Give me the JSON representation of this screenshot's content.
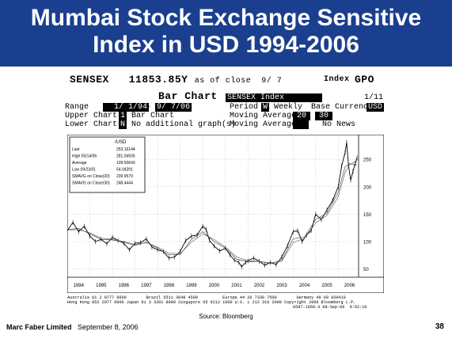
{
  "slide": {
    "title_line1": "Mumbai Stock Exchange Sensitive",
    "title_line2": "Index in USD 1994-2006",
    "source": "Source: Bloomberg",
    "footer_company": "Marc Faber Limited",
    "footer_date": "September 8, 2006",
    "page_number": "38"
  },
  "terminal": {
    "ticker": "SENSEX",
    "price": "11853.85Y",
    "as_of": "as of close  9/ 7",
    "index_label": "Index",
    "go_label": "GPO",
    "chart_title": "Bar Chart",
    "security_name": "SENSEX Index",
    "page_ind": "1/11",
    "range_label": "Range",
    "range_start": "1/ 1/94",
    "range_sep": "-",
    "range_end": "9/ 7/06",
    "period_label": "Period",
    "period_value": "W",
    "period_name": "Weekly",
    "base_currency_label": "Base Currency:",
    "base_currency_value": "USD",
    "upper_chart_label": "Upper Chart:",
    "upper_chart_value": "1",
    "upper_chart_name": "Bar Chart",
    "ma_label": "Moving Averages",
    "ma1": "20",
    "ma2": "30",
    "lower_chart_label": "Lower Chart:",
    "lower_chart_value": "N",
    "lower_chart_name": "No additional graph(s)",
    "ma_label2": "Moving Average",
    "no_news": "No News",
    "footer_line1": "Australia 61 2 9777 8600        Brazil 5511 3048 4500          Europe 44 20 7330 7500        Germany 49 69 920410",
    "footer_line2": "Hong Kong 852 2977 6000 Japan 81 3 3201 8900 Singapore 65 6212 1000 U.S. 1 212 318 2000 Copyright 2006 Bloomberg L.P.",
    "footer_line3": "G587-1058-3 08-Sep-06  9:52:10"
  },
  "legend": {
    "currency": "/USD",
    "rows": [
      {
        "label": "Last",
        "value": "253.16144"
      },
      {
        "label": "High  05/14/06",
        "value": "281.04935"
      },
      {
        "label": "Average",
        "value": "109.50643"
      },
      {
        "label": "Low  09/23/01",
        "value": "54.04291"
      },
      {
        "label": "SMAVG on Close(20)",
        "value": "239.9579"
      },
      {
        "label": "SMAVG on Close(30)",
        "value": "248.4444"
      }
    ]
  },
  "chart_data": {
    "type": "line",
    "title": "",
    "xlabel": "",
    "ylabel": "",
    "x_ticks": [
      "1994",
      "1995",
      "1996",
      "1997",
      "1998",
      "1999",
      "2000",
      "2001",
      "2002",
      "2003",
      "2004",
      "2005",
      "2006"
    ],
    "y_ticks": [
      50,
      100,
      150,
      200,
      250
    ],
    "ylim": [
      35,
      295
    ],
    "xlim": [
      1994.0,
      2006.9
    ],
    "grid": true,
    "series": [
      {
        "name": "",
        "role": "price",
        "x": [
          1994.0,
          1994.25,
          1994.5,
          1994.75,
          1995.0,
          1995.25,
          1995.5,
          1995.75,
          1996.0,
          1996.25,
          1996.5,
          1996.75,
          1997.0,
          1997.25,
          1997.5,
          1997.75,
          1998.0,
          1998.25,
          1998.5,
          1998.75,
          1999.0,
          1999.25,
          1999.5,
          1999.75,
          2000.0,
          2000.15,
          2000.3,
          2000.5,
          2000.75,
          2001.0,
          2001.2,
          2001.4,
          2001.6,
          2001.72,
          2001.9,
          2002.0,
          2002.25,
          2002.5,
          2002.75,
          2003.0,
          2003.25,
          2003.5,
          2003.75,
          2004.0,
          2004.2,
          2004.4,
          2004.6,
          2004.8,
          2005.0,
          2005.25,
          2005.5,
          2005.75,
          2006.0,
          2006.15,
          2006.3,
          2006.37,
          2006.45,
          2006.55,
          2006.65,
          2006.75,
          2006.83
        ],
        "y": [
          120,
          135,
          118,
          128,
          110,
          100,
          104,
          96,
          108,
          102,
          97,
          85,
          97,
          98,
          105,
          90,
          85,
          82,
          70,
          72,
          82,
          102,
          110,
          112,
          128,
          122,
          102,
          92,
          83,
          88,
          76,
          66,
          62,
          54,
          62,
          65,
          70,
          64,
          57,
          62,
          58,
          72,
          92,
          118,
          120,
          100,
          112,
          120,
          150,
          140,
          158,
          175,
          200,
          238,
          262,
          281,
          240,
          212,
          228,
          242,
          253
        ]
      },
      {
        "name": "",
        "role": "sma20",
        "x": [
          1994.0,
          1994.5,
          1995.0,
          1995.5,
          1996.0,
          1996.5,
          1997.0,
          1997.5,
          1998.0,
          1998.5,
          1999.0,
          1999.5,
          2000.0,
          2000.5,
          2001.0,
          2001.5,
          2002.0,
          2002.5,
          2003.0,
          2003.5,
          2004.0,
          2004.5,
          2005.0,
          2005.5,
          2006.0,
          2006.3,
          2006.5,
          2006.83
        ],
        "y": [
          122,
          124,
          114,
          104,
          103,
          99,
          93,
          99,
          88,
          76,
          76,
          104,
          118,
          100,
          88,
          68,
          63,
          64,
          60,
          66,
          105,
          108,
          140,
          152,
          190,
          236,
          242,
          240
        ]
      },
      {
        "name": "",
        "role": "sma30",
        "x": [
          1994.0,
          1994.5,
          1995.0,
          1995.5,
          1996.0,
          1996.5,
          1997.0,
          1997.5,
          1998.0,
          1998.5,
          1999.0,
          1999.5,
          2000.0,
          2000.5,
          2001.0,
          2001.5,
          2002.0,
          2002.5,
          2003.0,
          2003.5,
          2004.0,
          2004.5,
          2005.0,
          2005.5,
          2006.0,
          2006.3,
          2006.5,
          2006.83
        ],
        "y": [
          121,
          122,
          116,
          106,
          104,
          100,
          95,
          98,
          90,
          79,
          78,
          99,
          114,
          104,
          90,
          72,
          65,
          64,
          61,
          64,
          98,
          106,
          134,
          148,
          182,
          226,
          240,
          248
        ]
      }
    ]
  }
}
